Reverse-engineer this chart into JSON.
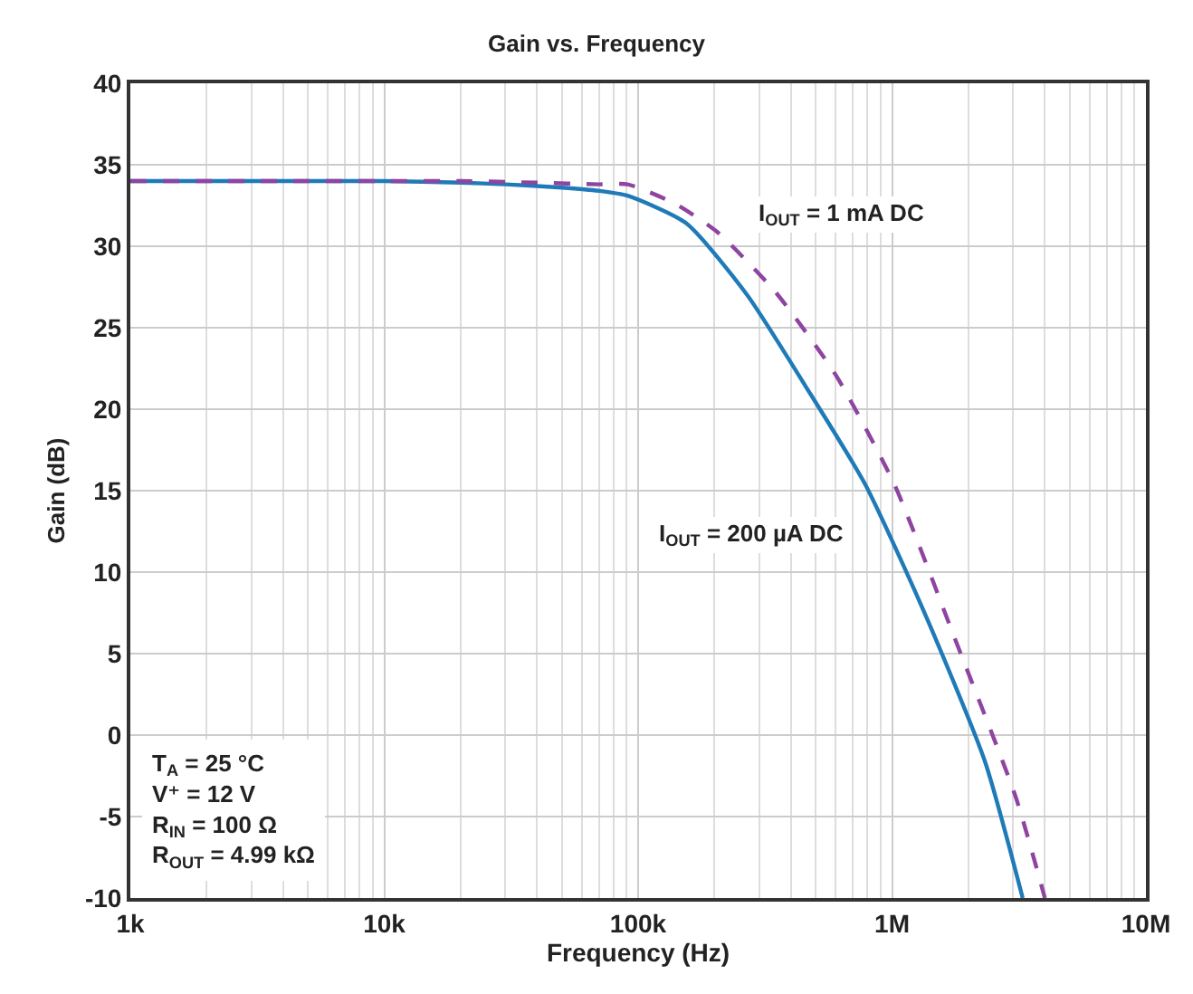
{
  "chart_data": {
    "type": "line",
    "title": "Gain vs. Frequency",
    "xlabel": "Frequency (Hz)",
    "ylabel": "Gain (dB)",
    "log": "x",
    "grid": true,
    "legend": false,
    "xlim": [
      1000,
      10000000
    ],
    "xticks": [
      {
        "value": 1000,
        "label": "1k"
      },
      {
        "value": 10000,
        "label": "10k"
      },
      {
        "value": 100000,
        "label": "100k"
      },
      {
        "value": 1000000,
        "label": "1M"
      },
      {
        "value": 10000000,
        "label": "10M"
      }
    ],
    "ylim": [
      -10,
      40
    ],
    "yticks": [
      -10,
      -5,
      0,
      5,
      10,
      15,
      20,
      25,
      30,
      35,
      40
    ],
    "series": [
      {
        "name": "I$_{OUT}$ = 200 µA DC",
        "color": "#1f7ab8",
        "line_style": "solid",
        "x": [
          1000,
          5000,
          10000,
          20000,
          30000,
          50000,
          70000,
          90800,
          155000,
          269000,
          457000,
          783000,
          1360000,
          2320000,
          3270000
        ],
        "values": [
          34,
          34,
          34,
          33.9,
          33.8,
          33.6,
          33.4,
          33.1,
          31.4,
          27,
          21.4,
          15.4,
          7.3,
          -1.6,
          -10
        ]
      },
      {
        "name": "I$_{OUT}$ = 1 mA DC",
        "color": "#8e44a0",
        "line_style": "dashed",
        "x": [
          1000,
          5000,
          10000,
          20000,
          40000,
          70000,
          90800,
          140000,
          204000,
          347000,
          600000,
          1020000,
          1770000,
          3070000,
          4000000
        ],
        "values": [
          34,
          34,
          34,
          34,
          33.9,
          33.8,
          33.8,
          32.6,
          30.9,
          27.2,
          22.1,
          15.4,
          5.9,
          -3.8,
          -10
        ]
      }
    ],
    "annotations": [
      "T$_{A}$ = 25 °C",
      "V⁺ = 12 V",
      "R$_{IN}$ = 100 Ω",
      "R$_{OUT}$ = 4.99 kΩ"
    ]
  }
}
